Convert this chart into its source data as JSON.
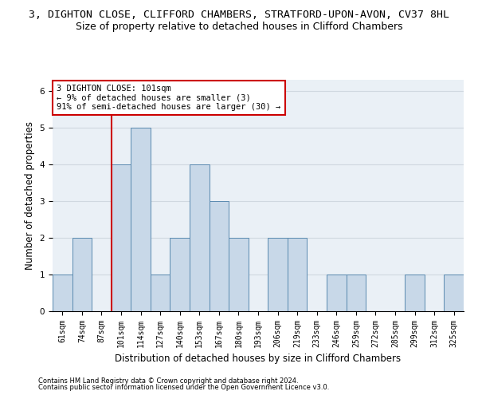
{
  "title": "3, DIGHTON CLOSE, CLIFFORD CHAMBERS, STRATFORD-UPON-AVON, CV37 8HL",
  "subtitle": "Size of property relative to detached houses in Clifford Chambers",
  "xlabel": "Distribution of detached houses by size in Clifford Chambers",
  "ylabel": "Number of detached properties",
  "footnote1": "Contains HM Land Registry data © Crown copyright and database right 2024.",
  "footnote2": "Contains public sector information licensed under the Open Government Licence v3.0.",
  "annotation_line1": "3 DIGHTON CLOSE: 101sqm",
  "annotation_line2": "← 9% of detached houses are smaller (3)",
  "annotation_line3": "91% of semi-detached houses are larger (30) →",
  "bar_color": "#c8d8e8",
  "bar_edge_color": "#5a8ab0",
  "vline_color": "#cc0000",
  "annotation_box_edge": "#cc0000",
  "annotation_box_face": "#ffffff",
  "categories": [
    "61sqm",
    "74sqm",
    "87sqm",
    "101sqm",
    "114sqm",
    "127sqm",
    "140sqm",
    "153sqm",
    "167sqm",
    "180sqm",
    "193sqm",
    "206sqm",
    "219sqm",
    "233sqm",
    "246sqm",
    "259sqm",
    "272sqm",
    "285sqm",
    "299sqm",
    "312sqm",
    "325sqm"
  ],
  "values": [
    1,
    2,
    0,
    4,
    5,
    1,
    2,
    4,
    3,
    2,
    0,
    2,
    2,
    0,
    1,
    1,
    0,
    0,
    1,
    0,
    1
  ],
  "vline_x_index": 3,
  "ylim": [
    0,
    6.3
  ],
  "yticks": [
    0,
    1,
    2,
    3,
    4,
    5,
    6
  ],
  "grid_color": "#d0d8e0",
  "bg_color": "#eaf0f6",
  "title_fontsize": 9.5,
  "subtitle_fontsize": 9,
  "xlabel_fontsize": 8.5,
  "ylabel_fontsize": 8.5,
  "tick_fontsize": 7,
  "annot_fontsize": 7.5,
  "footnote_fontsize": 6
}
